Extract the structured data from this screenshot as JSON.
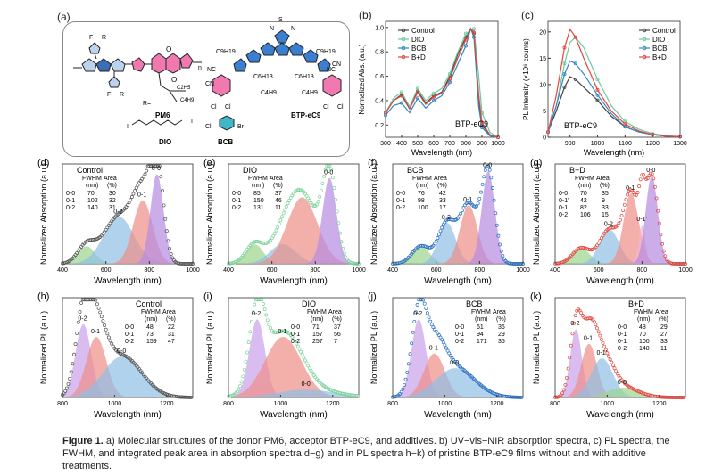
{
  "panel_a": {
    "letter": "(a)",
    "molecules": {
      "pm6": "PM6",
      "btp": "BTP-eC9",
      "dio": "DIO",
      "bcb": "BCB"
    },
    "atoms": {
      "F": "F",
      "R": "R",
      "O": "O",
      "S": "S",
      "N": "N",
      "Cl": "Cl",
      "Br": "Br",
      "CN": "CN",
      "NC": "NC",
      "c9h19": "C9H19",
      "c6h13": "C6H13",
      "c4h9": "C4H9",
      "c2h5": "C2H5",
      "n": "n",
      "r_eq": "R= "
    }
  },
  "panel_b": {
    "letter": "(b)",
    "xlabel": "Wavelength (nm)",
    "ylabel": "Normalized Abs. (a.u.)",
    "annotation": "BTP-eC9",
    "xticks": [
      "300",
      "400",
      "500",
      "600",
      "700",
      "800",
      "900",
      "1000"
    ],
    "yticks": [
      "0.2",
      "0.4",
      "0.6",
      "0.8",
      "1.0"
    ],
    "legend": [
      "Control",
      "DIO",
      "BCB",
      "B+D"
    ],
    "colors": [
      "#444444",
      "#6cc9a0",
      "#2e86c8",
      "#e0483f"
    ]
  },
  "panel_c": {
    "letter": "(c)",
    "xlabel": "Wavelength (nm)",
    "ylabel": "PL Intensity (×10⁶ counts)",
    "annotation": "BTP-eC9",
    "xticks": [
      "900",
      "1000",
      "1100",
      "1200",
      "1300"
    ],
    "yticks": [
      "0",
      "5",
      "10",
      "15",
      "20"
    ],
    "legend": [
      "Control",
      "DIO",
      "BCB",
      "B+D"
    ]
  },
  "panel_d": {
    "letter": "(d)",
    "title": "Control",
    "ylabel": "Normalized Absorption (a.u.)",
    "xlabel": "Wavelength (nm)",
    "xticks": [
      "400",
      "600",
      "800",
      "1000"
    ],
    "table": {
      "h1": "FWHM",
      "h2": "Area",
      "u1": "(nm)",
      "u2": "(%)",
      "rows": [
        [
          "0-0",
          "70",
          "30"
        ],
        [
          "0-1",
          "102",
          "32"
        ],
        [
          "0-2",
          "140",
          "31"
        ]
      ]
    },
    "peaks": {
      "p00": "0-0",
      "p01": "0-1",
      "p02": "0-2"
    }
  },
  "panel_e": {
    "letter": "(e)",
    "title": "DIO",
    "ylabel": "Normalized Absorption (a.u.)",
    "xlabel": "Wavelength (nm)",
    "xticks": [
      "400",
      "600",
      "800",
      "1000"
    ],
    "table": {
      "h1": "FWHM",
      "h2": "Area",
      "u1": "(nm)",
      "u2": "(%)",
      "rows": [
        [
          "0-0",
          "85",
          "37"
        ],
        [
          "0-1",
          "150",
          "46"
        ],
        [
          "0-2",
          "131",
          "11"
        ]
      ]
    },
    "peaks": {
      "p00": "0-0"
    }
  },
  "panel_f": {
    "letter": "(f)",
    "title": "BCB",
    "ylabel": "Normalized Absorption (a.u.)",
    "xlabel": "Wavelength (nm)",
    "xticks": [
      "400",
      "600",
      "800",
      "1000"
    ],
    "table": {
      "h1": "FWHM",
      "h2": "Area",
      "u1": "(nm)",
      "u2": "(%)",
      "rows": [
        [
          "0-0",
          "76",
          "42"
        ],
        [
          "0-1",
          "98",
          "33"
        ],
        [
          "0-2",
          "100",
          "17"
        ]
      ]
    },
    "peaks": {
      "p00": "0-0",
      "p01": "0-1",
      "p02": "0-2"
    }
  },
  "panel_g": {
    "letter": "(g)",
    "title": "B+D",
    "ylabel": "Normalized Absorption (a.u.)",
    "xlabel": "Wavelength (nm)",
    "xticks": [
      "400",
      "600",
      "800",
      "1000"
    ],
    "table": {
      "h1": "FWHM",
      "h2": "Area",
      "u1": "(nm)",
      "u2": "(%)",
      "rows": [
        [
          "0-0",
          "70",
          "35"
        ],
        [
          "0-1'",
          "42",
          "9"
        ],
        [
          "0-1",
          "82",
          "33"
        ],
        [
          "0-2",
          "106",
          "15"
        ]
      ]
    },
    "peaks": {
      "p00": "0-0",
      "p01p": "0-1'",
      "p01": "0-1",
      "p02": "0-2"
    }
  },
  "panel_h": {
    "letter": "(h)",
    "title": "Control",
    "ylabel": "Normalized PL (a.u.)",
    "xlabel": "Wavelength (nm)",
    "xticks": [
      "800",
      "1000",
      "1200"
    ],
    "table": {
      "h1": "FWHM",
      "h2": "Area",
      "u1": "(nm)",
      "u2": "(%)",
      "rows": [
        [
          "0-0",
          "48",
          "22"
        ],
        [
          "0-1",
          "73",
          "31"
        ],
        [
          "0-2",
          "159",
          "47"
        ]
      ]
    },
    "peaks": {
      "p00": "0-0",
      "p01": "0-1",
      "p02": "0-2"
    }
  },
  "panel_i": {
    "letter": "(i)",
    "title": "DIO",
    "ylabel": "Normalized PL (a.u.)",
    "xlabel": "Wavelength (nm)",
    "xticks": [
      "800",
      "1000",
      "1200"
    ],
    "table": {
      "h1": "FWHM",
      "h2": "Area",
      "u1": "(nm)",
      "u2": "(%)",
      "rows": [
        [
          "0-0",
          "71",
          "37"
        ],
        [
          "0-1",
          "157",
          "56"
        ],
        [
          "0-2",
          "257",
          "7"
        ]
      ]
    },
    "peaks": {
      "p00": "0-0",
      "p01": "0-1",
      "p02": "0-2"
    }
  },
  "panel_j": {
    "letter": "(j)",
    "title": "BCB",
    "ylabel": "Normalized PL (a.u.)",
    "xlabel": "Wavelength (nm)",
    "xticks": [
      "800",
      "1000",
      "1200"
    ],
    "table": {
      "h1": "FWHM",
      "h2": "Area",
      "u1": "(nm)",
      "u2": "(%)",
      "rows": [
        [
          "0-0",
          "61",
          "36"
        ],
        [
          "0-1",
          "94",
          "29"
        ],
        [
          "0-2",
          "171",
          "35"
        ]
      ]
    },
    "peaks": {
      "p00": "0-0",
      "p01": "0-1",
      "p02": "0-2"
    }
  },
  "panel_k": {
    "letter": "(k)",
    "title": "B+D",
    "ylabel": "Normalized PL (a.u.)",
    "xlabel": "Wavelength (nm)",
    "xticks": [
      "800",
      "1000",
      "1200"
    ],
    "table": {
      "h1": "FWHM",
      "h2": "Area",
      "u1": "(nm)",
      "u2": "(%)",
      "rows": [
        [
          "0-0",
          "48",
          "29"
        ],
        [
          "0-1'",
          "70",
          "27"
        ],
        [
          "0-1",
          "100",
          "33"
        ],
        [
          "0-2",
          "148",
          "11"
        ]
      ]
    },
    "peaks": {
      "p00": "0-0",
      "p01p": "0-1'",
      "p01": "0-1",
      "p02": "0-2"
    }
  },
  "caption": {
    "label": "Figure 1.",
    "text": " a) Molecular structures of the donor PM6, acceptor BTP-eC9, and additives. b) UV−vis−NIR absorption spectra, c) PL spectra, the FWHM, and integrated peak area in absorption spectra d−g) and in PL spectra h−k) of pristine BTP-eC9 films without and with additive treatments."
  },
  "chart_data": [
    {
      "type": "line",
      "id": "b",
      "title": "",
      "xlabel": "Wavelength (nm)",
      "ylabel": "Normalized Abs. (a.u.)",
      "xlim": [
        300,
        1000
      ],
      "ylim": [
        0.1,
        1.05
      ],
      "x": [
        300,
        350,
        400,
        450,
        500,
        550,
        600,
        650,
        700,
        750,
        800,
        830,
        850,
        880,
        900,
        950,
        1000
      ],
      "series": [
        {
          "name": "Control",
          "values": [
            0.3,
            0.4,
            0.45,
            0.34,
            0.48,
            0.38,
            0.44,
            0.47,
            0.6,
            0.78,
            0.92,
            0.99,
            0.95,
            0.4,
            0.2,
            0.12,
            0.1
          ]
        },
        {
          "name": "DIO",
          "values": [
            0.3,
            0.42,
            0.47,
            0.35,
            0.5,
            0.4,
            0.46,
            0.5,
            0.62,
            0.8,
            0.95,
            0.98,
            0.99,
            0.6,
            0.3,
            0.14,
            0.1
          ]
        },
        {
          "name": "BCB",
          "values": [
            0.28,
            0.36,
            0.38,
            0.3,
            0.42,
            0.34,
            0.4,
            0.44,
            0.55,
            0.7,
            0.85,
            0.99,
            0.92,
            0.35,
            0.18,
            0.11,
            0.1
          ]
        },
        {
          "name": "B+D",
          "values": [
            0.3,
            0.4,
            0.44,
            0.33,
            0.47,
            0.37,
            0.43,
            0.46,
            0.58,
            0.75,
            0.9,
            0.99,
            0.96,
            0.45,
            0.22,
            0.12,
            0.1
          ]
        }
      ]
    },
    {
      "type": "line",
      "id": "c",
      "xlabel": "Wavelength (nm)",
      "ylabel": "PL Intensity (×10⁶ counts)",
      "xlim": [
        820,
        1300
      ],
      "ylim": [
        0,
        22
      ],
      "x": [
        820,
        850,
        880,
        900,
        920,
        950,
        1000,
        1050,
        1100,
        1150,
        1200,
        1250,
        1300
      ],
      "series": [
        {
          "name": "Control",
          "values": [
            1,
            5,
            9.5,
            11.5,
            11,
            9.5,
            7,
            4,
            2,
            1,
            0.5,
            0.2,
            0.1
          ]
        },
        {
          "name": "DIO",
          "values": [
            1,
            6,
            14,
            18,
            19,
            17,
            11,
            6,
            3,
            1.5,
            0.7,
            0.3,
            0.1
          ]
        },
        {
          "name": "BCB",
          "values": [
            1,
            6,
            12,
            14.5,
            14,
            12,
            8,
            4.5,
            2,
            1,
            0.5,
            0.2,
            0.1
          ]
        },
        {
          "name": "B+D",
          "values": [
            1,
            8,
            17,
            20.5,
            19,
            15,
            9,
            5,
            2.5,
            1.2,
            0.5,
            0.2,
            0.1
          ]
        }
      ]
    }
  ]
}
